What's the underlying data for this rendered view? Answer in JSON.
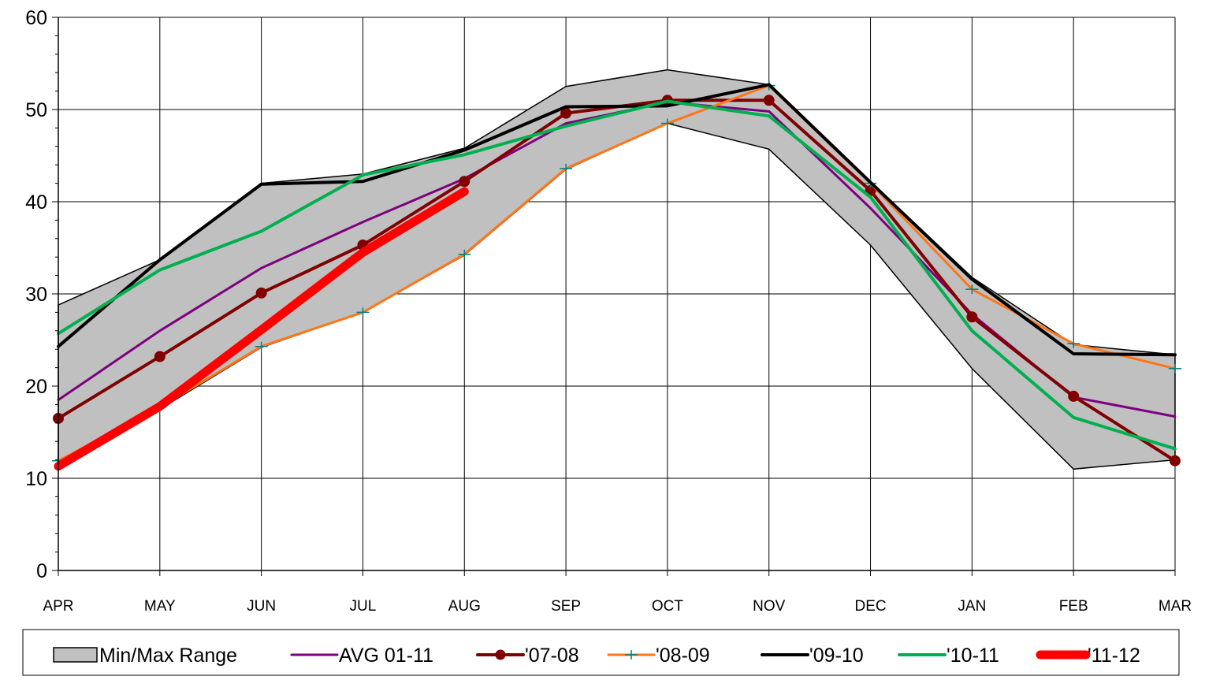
{
  "chart_data": {
    "type": "line",
    "title": "",
    "xlabel": "",
    "ylabel": "",
    "ylim": [
      0,
      60
    ],
    "yticks": [
      0,
      10,
      20,
      30,
      40,
      50,
      60
    ],
    "grid": true,
    "legend_position": "bottom",
    "categories": [
      "APR",
      "MAY",
      "JUN",
      "JUL",
      "AUG",
      "SEP",
      "OCT",
      "NOV",
      "DEC",
      "JAN",
      "FEB",
      "MAR"
    ],
    "range": {
      "name": "Min/Max Range",
      "min": [
        11.5,
        17.5,
        24.2,
        28.0,
        34.2,
        43.5,
        48.5,
        45.7,
        35.3,
        21.9,
        11.0,
        12.0
      ],
      "max": [
        28.8,
        33.7,
        42.0,
        43.0,
        45.8,
        52.5,
        54.3,
        52.7,
        42.2,
        31.8,
        24.5,
        23.4
      ],
      "fill": "#c0c0c0",
      "stroke": "#000000"
    },
    "series": [
      {
        "name": "AVG 01-11",
        "color": "#7f007f",
        "width": 3,
        "marker": "none",
        "values": [
          18.5,
          26.0,
          32.8,
          37.8,
          42.5,
          48.5,
          50.8,
          49.8,
          39.3,
          27.8,
          18.8,
          16.7
        ]
      },
      {
        "name": "'07-08",
        "color": "#800000",
        "width": 4,
        "marker": "circle",
        "values": [
          16.5,
          23.2,
          30.1,
          35.3,
          42.2,
          49.6,
          51.0,
          51.0,
          41.2,
          27.5,
          18.9,
          11.9
        ]
      },
      {
        "name": "'08-09",
        "color": "#ff7518",
        "width": 3,
        "marker": "plus",
        "values": [
          11.9,
          17.7,
          24.3,
          28.0,
          34.3,
          43.6,
          48.5,
          52.6,
          42.0,
          30.5,
          24.6,
          21.9
        ]
      },
      {
        "name": "'09-10",
        "color": "#000000",
        "width": 4,
        "marker": "none",
        "values": [
          24.3,
          33.7,
          41.9,
          42.2,
          45.6,
          50.3,
          50.4,
          52.7,
          42.1,
          31.6,
          23.5,
          23.4
        ]
      },
      {
        "name": "'10-11",
        "color": "#00b050",
        "width": 4,
        "marker": "none",
        "values": [
          25.7,
          32.6,
          36.8,
          42.9,
          45.1,
          48.2,
          50.9,
          49.3,
          40.5,
          26.0,
          16.6,
          13.2
        ]
      },
      {
        "name": "'11-12",
        "color": "#ff0000",
        "width": 11,
        "marker": "none",
        "values": [
          11.3,
          17.8,
          26.1,
          34.5,
          41.1,
          null,
          null,
          null,
          null,
          null,
          null,
          null
        ]
      }
    ]
  }
}
